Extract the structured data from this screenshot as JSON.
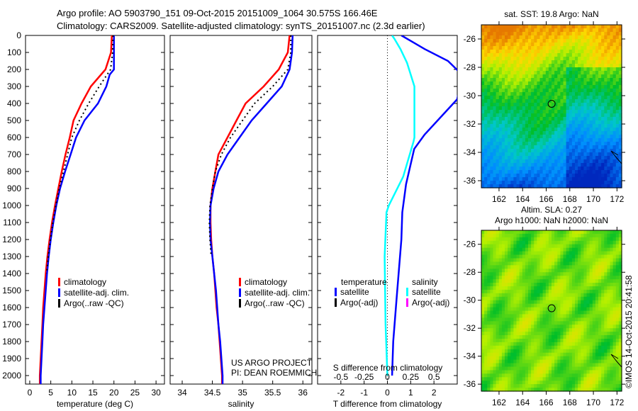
{
  "title_line1": "Argo profile: AO 5903790_151 09-Oct-2015 20151009_1064 30.575S 166.46E",
  "title_line2": "Climatology: CARS2009. Satellite-adjusted climatology: synTS_20151007.nc (2.3d earlier)",
  "credit": "US ARGO PROJECT",
  "pi": "PI: DEAN ROEMMICH",
  "imos": "©IMOS 14-Oct-2015 20:41:58",
  "colors": {
    "clim": "#ff0000",
    "sat": "#0000ff",
    "argo": "#000000",
    "sal_sat": "#00ffff",
    "sal_argo": "#ff00ff"
  },
  "chart_data": [
    {
      "type": "line",
      "title": "",
      "xlabel": "temperature (deg C)",
      "ylabel": "",
      "xlim": [
        -1,
        32
      ],
      "ylim": [
        2050,
        0
      ],
      "xticks": [
        0,
        5,
        10,
        15,
        20,
        25,
        30
      ],
      "yticks": [
        0,
        100,
        200,
        300,
        400,
        500,
        600,
        700,
        800,
        900,
        1000,
        1100,
        1200,
        1300,
        1400,
        1500,
        1600,
        1700,
        1800,
        1900,
        2000
      ],
      "legend": [
        "climatology",
        "satellite-adj. clim.",
        "Argo(..raw -QC)"
      ],
      "series": [
        {
          "name": "climatology",
          "depth": [
            0,
            100,
            200,
            300,
            400,
            500,
            600,
            700,
            800,
            900,
            1000,
            1100,
            1200,
            1300,
            1400,
            1500,
            1600,
            1700,
            1800,
            1900,
            2000,
            2050
          ],
          "values": [
            19.5,
            19.3,
            18,
            14.5,
            12.3,
            10.4,
            9.5,
            8.5,
            7.6,
            6.8,
            6,
            5.3,
            4.7,
            4.2,
            3.8,
            3.5,
            3.2,
            3,
            2.8,
            2.6,
            2.4,
            2.4
          ]
        },
        {
          "name": "satellite-adj. clim.",
          "depth": [
            0,
            100,
            200,
            230,
            300,
            400,
            500,
            600,
            700,
            800,
            900,
            1000,
            1100,
            1200,
            1300,
            1400,
            1500,
            1600,
            1700,
            1800,
            1900,
            2000,
            2050
          ],
          "values": [
            20,
            20,
            20,
            19,
            18.2,
            16.2,
            13,
            11,
            9.7,
            8.4,
            7.2,
            6.3,
            5.6,
            5,
            4.5,
            4.1,
            3.8,
            3.5,
            3.2,
            3,
            2.8,
            2.6,
            2.6
          ]
        },
        {
          "name": "Argo(..raw -QC)",
          "depth": [
            0,
            100,
            200,
            300,
            400,
            500,
            600,
            700,
            800,
            900,
            1000,
            1100,
            1200,
            1300,
            1400
          ],
          "values": [
            19.8,
            19.7,
            19.2,
            16.5,
            14,
            11.8,
            10,
            9,
            8,
            7,
            6.2,
            5.5,
            4.9,
            4.4,
            4
          ]
        }
      ]
    },
    {
      "type": "line",
      "xlabel": "salinity",
      "xlim": [
        33.8,
        36.15
      ],
      "ylim": [
        2050,
        0
      ],
      "xticks": [
        34,
        34.5,
        35,
        35.5,
        36
      ],
      "legend": [
        "climatology",
        "satellite-adj. clim.",
        "Argo(..raw -QC)"
      ],
      "series": [
        {
          "name": "climatology",
          "depth": [
            0,
            100,
            200,
            300,
            400,
            500,
            600,
            700,
            800,
            900,
            1000,
            1100,
            1200,
            1300,
            1400,
            1500,
            1600,
            1700,
            1800,
            1900,
            2000,
            2050
          ],
          "values": [
            35.78,
            35.75,
            35.6,
            35.35,
            35.05,
            34.9,
            34.75,
            34.6,
            34.55,
            34.5,
            34.47,
            34.47,
            34.48,
            34.5,
            34.53,
            34.55,
            34.57,
            34.6,
            34.62,
            34.64,
            34.66,
            34.66
          ]
        },
        {
          "name": "satellite-adj. clim.",
          "depth": [
            0,
            100,
            200,
            300,
            400,
            500,
            600,
            700,
            800,
            900,
            1000,
            1100,
            1200,
            1300,
            1400,
            1500,
            1600,
            1700,
            1800,
            1900,
            2000,
            2050
          ],
          "values": [
            35.83,
            35.82,
            35.78,
            35.65,
            35.4,
            35.15,
            34.95,
            34.75,
            34.6,
            34.52,
            34.47,
            34.46,
            34.47,
            34.5,
            34.53,
            34.56,
            34.58,
            34.6,
            34.63,
            34.65,
            34.67,
            34.67
          ]
        },
        {
          "name": "Argo(..raw -QC)",
          "depth": [
            0,
            100,
            200,
            300,
            400,
            500,
            600,
            700,
            800,
            900,
            1000,
            1100,
            1200,
            1300
          ],
          "values": [
            35.8,
            35.8,
            35.75,
            35.5,
            35.2,
            35,
            34.8,
            34.65,
            34.55,
            34.5,
            34.46,
            34.45,
            34.46,
            34.48
          ]
        }
      ]
    },
    {
      "type": "line",
      "xlabel": "T difference from climatology",
      "xlabel2": "S difference from climatology",
      "xlim": [
        -3,
        3
      ],
      "ylim": [
        2050,
        0
      ],
      "xticks": [
        -2,
        -1,
        0,
        1,
        2
      ],
      "xticks2": [
        -0.5,
        -0.25,
        0,
        0.25,
        0.5
      ],
      "legend_temp": {
        "title": "temperature",
        "items": [
          "satellite",
          "Argo(-adj)"
        ]
      },
      "legend_sal": {
        "title": "salinity",
        "items": [
          "satellite",
          "Argo(-adj)"
        ]
      },
      "series": [
        {
          "name": "temperature satellite",
          "depth": [
            0,
            40,
            80,
            150,
            230,
            375,
            583,
            667,
            875,
            1040,
            1200,
            1540,
            1800,
            2000
          ],
          "values": [
            0.6,
            1.1,
            1.6,
            2.6,
            3.2,
            3.0,
            1.6,
            1.15,
            0.8,
            0.64,
            0.6,
            0.4,
            0.25,
            0.2
          ]
        },
        {
          "name": "salinity satellite",
          "depth": [
            0,
            20,
            80,
            160,
            300,
            600,
            625,
            830,
            1000,
            1040,
            1300,
            1700,
            2000
          ],
          "values": [
            0.05,
            0.075,
            0.14,
            0.21,
            0.29,
            0.29,
            0.28,
            0.17,
            0.015,
            -0.01,
            -0.03,
            -0.02,
            0.0
          ]
        }
      ]
    },
    {
      "type": "heatmap",
      "title": "sat. SST: 19.8 Argo: NaN",
      "xlim": [
        160.5,
        172.4
      ],
      "ylim": [
        -36.5,
        -25
      ],
      "xticks": [
        162,
        164,
        166,
        168,
        170,
        172
      ],
      "yticks": [
        -26,
        -28,
        -30,
        -32,
        -34,
        -36
      ],
      "marker": [
        166.46,
        -30.575
      ]
    },
    {
      "type": "heatmap",
      "title": "Altim. SLA: 0.27",
      "title2": "Argo h1000: NaN h2000: NaN",
      "xlim": [
        160.5,
        172.4
      ],
      "ylim": [
        -36.5,
        -25
      ],
      "xticks": [
        162,
        164,
        166,
        168,
        170,
        172
      ],
      "yticks": [
        -26,
        -28,
        -30,
        -32,
        -34,
        -36
      ],
      "marker": [
        166.46,
        -30.575
      ]
    }
  ]
}
